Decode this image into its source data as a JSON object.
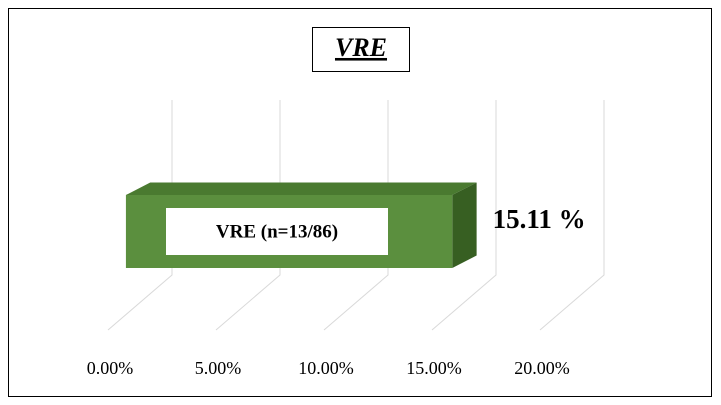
{
  "chart_data": {
    "type": "bar3d",
    "title": "VRE",
    "categories": [
      "VRE (n=13/86)"
    ],
    "values": [
      15.11
    ],
    "value_labels": [
      "15.11 %"
    ],
    "color": "#5b8f3e",
    "xlim": [
      0,
      20
    ],
    "xticks": [
      {
        "value": 0,
        "label": "0.00%"
      },
      {
        "value": 5,
        "label": "5.00%"
      },
      {
        "value": 10,
        "label": "10.00%"
      },
      {
        "value": 15,
        "label": "15.00%"
      },
      {
        "value": 20,
        "label": "20.00%"
      }
    ],
    "grid": true
  }
}
